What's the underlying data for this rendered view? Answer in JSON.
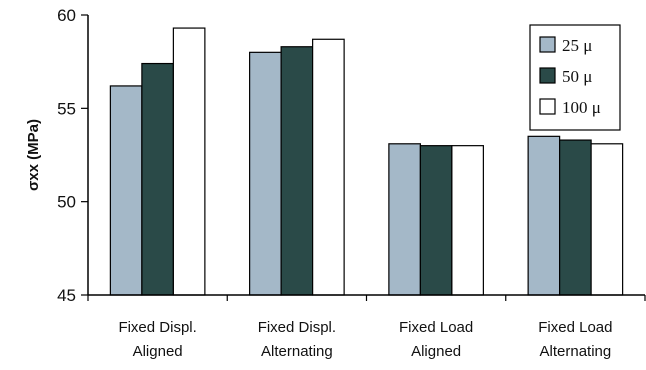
{
  "chart_data": {
    "type": "bar",
    "title": "",
    "ylabel": "σxx (MPa)",
    "xlabel": "",
    "ylim": [
      45,
      60
    ],
    "yticks": [
      45,
      50,
      55,
      60
    ],
    "grid": false,
    "legend_position": "top-right",
    "categories": [
      [
        "Fixed Displ.",
        "Aligned"
      ],
      [
        "Fixed Displ.",
        "Alternating"
      ],
      [
        "Fixed Load",
        "Aligned"
      ],
      [
        "Fixed Load",
        "Alternating"
      ]
    ],
    "series": [
      {
        "name": "25 μ",
        "color": "#a4b8c8",
        "values": [
          56.2,
          58.0,
          53.1,
          53.5
        ]
      },
      {
        "name": "50 μ",
        "color": "#2a4a48",
        "values": [
          57.4,
          58.3,
          53.0,
          53.3
        ]
      },
      {
        "name": "100 μ",
        "color": "#ffffff",
        "values": [
          59.3,
          58.7,
          53.0,
          53.1
        ]
      }
    ]
  }
}
